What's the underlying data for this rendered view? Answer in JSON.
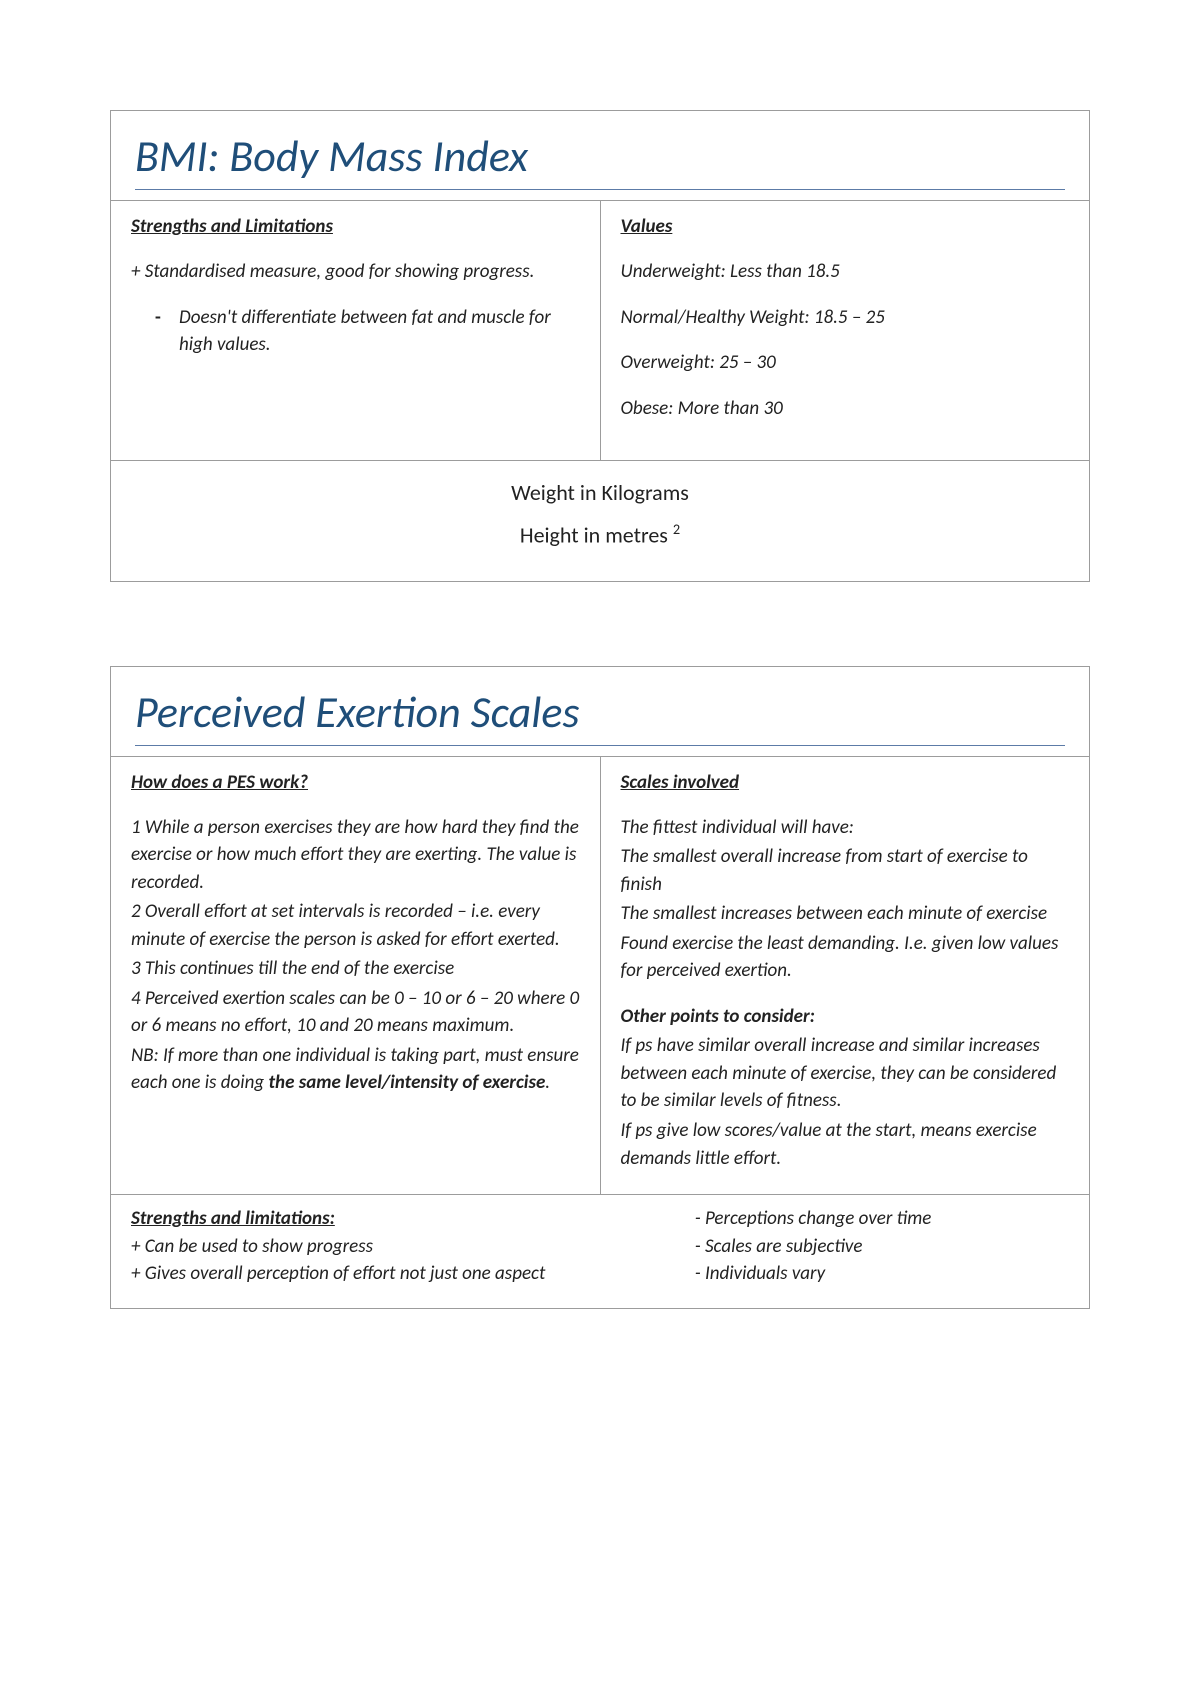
{
  "bmi": {
    "title": "BMI: Body Mass Index",
    "left": {
      "heading": "Strengths and Limitations",
      "plus": "+ Standardised measure, good for showing progress.",
      "minus": "Doesn't differentiate between fat and muscle for high values."
    },
    "right": {
      "heading": "Values",
      "v1": "Underweight: Less than 18.5",
      "v2": "Normal/Healthy Weight:  18.5 – 25",
      "v3": "Overweight: 25 – 30",
      "v4": "Obese: More than 30"
    },
    "formula": {
      "top": "Weight in Kilograms",
      "bottom_prefix": "Height in metres ",
      "bottom_sup": "2"
    }
  },
  "pes": {
    "title": "Perceived Exertion Scales",
    "left": {
      "heading": "How does a PES work?",
      "l1": "1 While a person exercises they are how hard they find the exercise or how much effort they are exerting. The value is recorded.",
      "l2": "2 Overall effort at set intervals is recorded – i.e. every minute of exercise the person is asked for effort exerted.",
      "l3": "3 This continues till the end of the exercise",
      "l4": "4 Perceived exertion scales can be 0 – 10 or 6 – 20 where 0 or 6 means no effort, 10 and 20 means maximum.",
      "nb_prefix": "NB: If more than one individual is taking part, must ensure each one is doing ",
      "nb_bold": "the same level/intensity of exercise",
      "nb_suffix": "."
    },
    "right": {
      "heading": "Scales involved",
      "intro": "The fittest individual will have:",
      "r1": "The smallest overall increase from start of exercise to finish",
      "r2": "The smallest increases between each minute of exercise",
      "r3": "Found exercise the least demanding. I.e. given low values for perceived exertion.",
      "other_head": "Other points to consider:",
      "o1": "If ps have similar overall increase and similar increases between each minute of exercise, they can be considered to be similar levels of fitness.",
      "o2": "If ps give low scores/value at the start, means exercise demands little effort."
    },
    "sl": {
      "heading": "Strengths and limitations:",
      "p1": "+ Can be used to show progress",
      "p2": "+ Gives overall perception of effort not just one aspect",
      "m1": "- Perceptions change over time",
      "m2": "- Scales are subjective",
      "m3": "- Individuals vary"
    }
  }
}
